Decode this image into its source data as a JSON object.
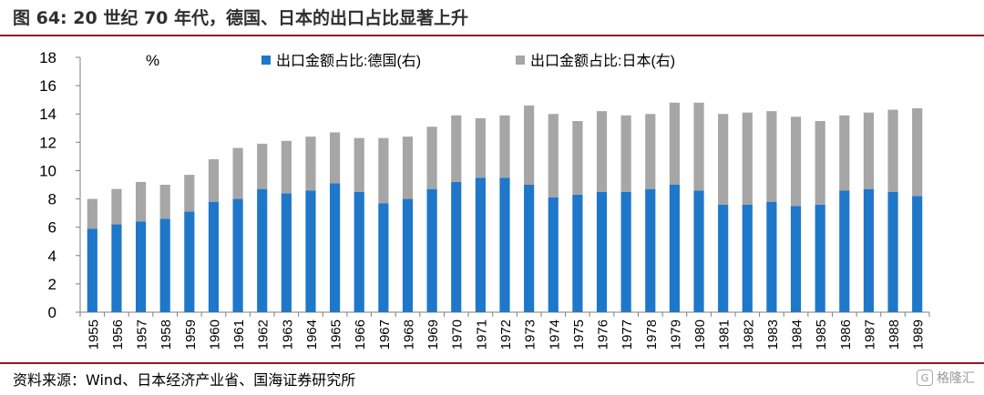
{
  "header": {
    "title": "图 64:  20 世纪 70 年代，德国、日本的出口占比显著上升"
  },
  "footer": {
    "source": "资料来源：Wind、日本经济产业省、国海证券研究所",
    "watermark": "格隆汇"
  },
  "colors": {
    "germany": "#1f77c9",
    "japan": "#a6a6a6",
    "rule": "#8b1e23",
    "axis": "#7f7f7f"
  },
  "chart_data": {
    "type": "bar",
    "stacked": true,
    "unit_label": "%",
    "categories": [
      "1955",
      "1956",
      "1957",
      "1958",
      "1959",
      "1960",
      "1961",
      "1962",
      "1963",
      "1964",
      "1965",
      "1966",
      "1967",
      "1968",
      "1969",
      "1970",
      "1971",
      "1972",
      "1973",
      "1974",
      "1975",
      "1976",
      "1977",
      "1978",
      "1979",
      "1980",
      "1981",
      "1982",
      "1983",
      "1984",
      "1985",
      "1986",
      "1987",
      "1988",
      "1989"
    ],
    "series": [
      {
        "name": "出口金额占比:德国(右)",
        "color": "#1f77c9",
        "values": [
          5.9,
          6.2,
          6.4,
          6.6,
          7.1,
          7.8,
          8.0,
          8.7,
          8.4,
          8.6,
          9.1,
          8.5,
          7.7,
          8.0,
          8.7,
          9.2,
          9.5,
          9.5,
          9.0,
          8.1,
          8.3,
          8.5,
          8.5,
          8.7,
          9.0,
          8.6,
          7.6,
          7.6,
          7.8,
          7.5,
          7.6,
          8.6,
          8.7,
          8.5,
          8.2
        ]
      },
      {
        "name": "出口金额占比:日本(右)",
        "color": "#a6a6a6",
        "values": [
          2.1,
          2.5,
          2.8,
          2.4,
          2.6,
          3.0,
          3.6,
          3.2,
          3.7,
          3.8,
          3.6,
          3.8,
          4.6,
          4.4,
          4.4,
          4.7,
          4.2,
          4.4,
          5.6,
          5.9,
          5.2,
          5.7,
          5.4,
          5.3,
          5.8,
          6.2,
          6.4,
          6.5,
          6.4,
          6.3,
          5.9,
          5.3,
          5.4,
          5.8,
          6.2
        ]
      }
    ],
    "ylim": [
      0,
      18
    ],
    "yticks": [
      0,
      2,
      4,
      6,
      8,
      10,
      12,
      14,
      16,
      18
    ],
    "legend_position": "top",
    "grid": false
  }
}
